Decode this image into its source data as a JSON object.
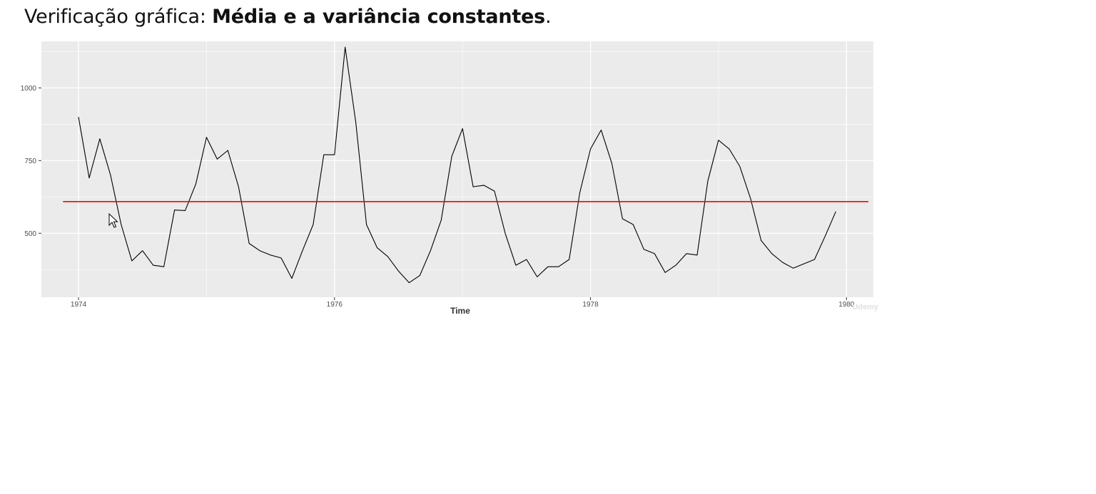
{
  "slide": {
    "title_prefix": "Verificação gráfica: ",
    "title_bold": "Média e a variância constantes",
    "title_suffix": "."
  },
  "chart_data": {
    "type": "line",
    "xlabel": "Time",
    "ylabel": "",
    "xlim": [
      1973.71,
      1980.21
    ],
    "ylim": [
      280,
      1160
    ],
    "x_ticks": [
      1974,
      1976,
      1978,
      1980
    ],
    "x_tick_labels": [
      "1974",
      "1976",
      "1978",
      "1980"
    ],
    "y_ticks": [
      500,
      750,
      1000
    ],
    "y_tick_labels": [
      "500",
      "750",
      "1000"
    ],
    "grid": true,
    "legend": "none",
    "series": [
      {
        "start": 1974,
        "frequency": 12,
        "values": [
          900,
          690,
          825,
          700,
          530,
          405,
          440,
          390,
          385,
          580,
          578,
          670,
          830,
          755,
          785,
          660,
          465,
          440,
          425,
          415,
          345,
          440,
          530,
          770,
          770,
          1140,
          880,
          530,
          450,
          420,
          370,
          330,
          355,
          440,
          545,
          765,
          860,
          660,
          665,
          645,
          500,
          390,
          410,
          350,
          385,
          385,
          410,
          640,
          790,
          855,
          740,
          550,
          530,
          445,
          430,
          365,
          390,
          430,
          425,
          680,
          820,
          790,
          730,
          620,
          475,
          430,
          400,
          380,
          395,
          410,
          490,
          575
        ],
        "color": "#000000"
      }
    ],
    "reference_lines": [
      {
        "axis": "y",
        "value": 609,
        "color": "#ff0000"
      }
    ],
    "watermark": "Udemy",
    "colors": {
      "panel": "#ebebeb",
      "grid": "#ffffff",
      "line": "#000000",
      "mean": "#ff0000"
    }
  }
}
